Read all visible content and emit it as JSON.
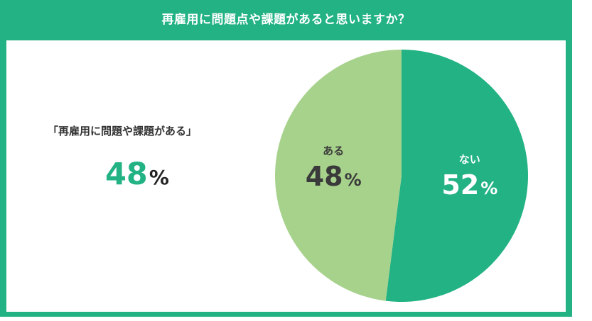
{
  "title": "再雇用に問題点や課題があると思いますか？",
  "summary": {
    "label": "「再雇用に問題や課題がある」",
    "value": "48",
    "unit": "%"
  },
  "chart_data": {
    "type": "pie",
    "title": "再雇用に問題点や課題があると思いますか？",
    "slices": [
      {
        "label": "ない",
        "value": 52,
        "display": "52",
        "unit": "%",
        "color": "#22b283",
        "text_color": "#ffffff"
      },
      {
        "label": "ある",
        "value": 48,
        "display": "48",
        "unit": "%",
        "color": "#a7d28c",
        "text_color": "#3a3a3a"
      }
    ]
  },
  "colors": {
    "accent": "#22b283",
    "secondary": "#a7d28c",
    "background": "#ffffff"
  }
}
